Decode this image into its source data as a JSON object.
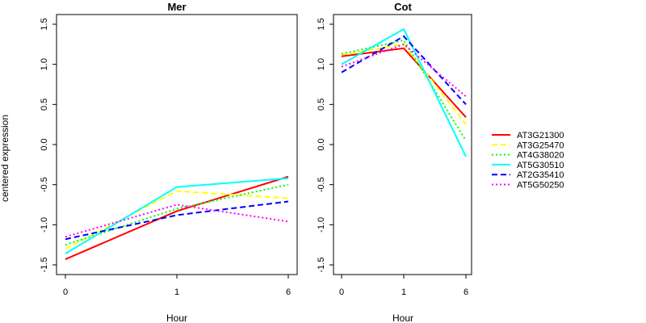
{
  "chart_data": [
    {
      "type": "line",
      "title": "Mer",
      "xlabel": "Hour",
      "ylabel": "centered expression",
      "categories": [
        "0",
        "1",
        "6"
      ],
      "ylim": [
        -1.5,
        1.5
      ],
      "yticks": [
        "-1.5",
        "-1.0",
        "-0.5",
        "0.0",
        "0.5",
        "1.0",
        "1.5"
      ],
      "grid": false,
      "series": [
        {
          "name": "AT3G21300",
          "values": [
            -1.43,
            -0.83,
            -0.4
          ]
        },
        {
          "name": "AT3G25470",
          "values": [
            -1.3,
            -0.58,
            -0.67
          ]
        },
        {
          "name": "AT4G38020",
          "values": [
            -1.25,
            -0.8,
            -0.5
          ]
        },
        {
          "name": "AT5G30510",
          "values": [
            -1.36,
            -0.53,
            -0.42
          ]
        },
        {
          "name": "AT2G35410",
          "values": [
            -1.18,
            -0.88,
            -0.71
          ]
        },
        {
          "name": "AT5G50250",
          "values": [
            -1.15,
            -0.75,
            -0.96
          ]
        }
      ]
    },
    {
      "type": "line",
      "title": "Cot",
      "xlabel": "Hour",
      "ylabel": "",
      "categories": [
        "0",
        "1",
        "6"
      ],
      "ylim": [
        -1.5,
        1.5
      ],
      "yticks": [
        "-1.5",
        "-1.0",
        "-0.5",
        "0.0",
        "0.5",
        "1.0",
        "1.5"
      ],
      "grid": false,
      "series": [
        {
          "name": "AT3G21300",
          "values": [
            1.1,
            1.2,
            0.34
          ]
        },
        {
          "name": "AT3G25470",
          "values": [
            1.12,
            1.25,
            0.25
          ]
        },
        {
          "name": "AT4G38020",
          "values": [
            1.13,
            1.3,
            0.05
          ]
        },
        {
          "name": "AT5G30510",
          "values": [
            1.0,
            1.44,
            -0.15
          ]
        },
        {
          "name": "AT2G35410",
          "values": [
            0.9,
            1.35,
            0.5
          ]
        },
        {
          "name": "AT5G50250",
          "values": [
            0.97,
            1.25,
            0.6
          ]
        }
      ]
    }
  ],
  "legend": {
    "placement": "right",
    "entries": [
      {
        "name": "AT3G21300",
        "color": "#ff0000",
        "dash": "solid"
      },
      {
        "name": "AT3G25470",
        "color": "#ffff00",
        "dash": "dashed"
      },
      {
        "name": "AT4G38020",
        "color": "#00ff00",
        "dash": "dotted"
      },
      {
        "name": "AT5G30510",
        "color": "#00ffff",
        "dash": "solid"
      },
      {
        "name": "AT2G35410",
        "color": "#0000ff",
        "dash": "dashed"
      },
      {
        "name": "AT5G50250",
        "color": "#ff00ff",
        "dash": "dotted"
      }
    ]
  }
}
